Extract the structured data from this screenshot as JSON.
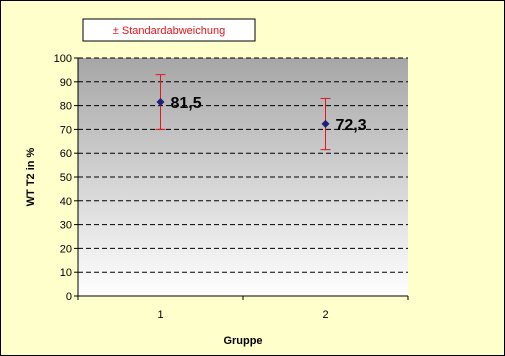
{
  "colors": {
    "background": "#ffffcc",
    "plot_gradient_top": "#a6a6a6",
    "plot_gradient_bottom": "#ffffff",
    "marker": "#1f1f7a",
    "error_bar": "#e8131b",
    "legend_text": "#e8131b"
  },
  "legend": {
    "text": "± Standardabweichung"
  },
  "chart_data": {
    "type": "scatter",
    "xlabel": "Gruppe",
    "ylabel": "WT T2  in %",
    "categories": [
      "1",
      "2"
    ],
    "values": [
      81.5,
      72.3
    ],
    "data_labels": [
      "81,5",
      "72,3"
    ],
    "error_upper": [
      93,
      83
    ],
    "error_lower": [
      70,
      61.5
    ],
    "ylim": [
      0,
      100
    ],
    "yticks": [
      "0",
      "10",
      "20",
      "30",
      "40",
      "50",
      "60",
      "70",
      "80",
      "90",
      "100"
    ],
    "grid": true,
    "gridline_style": "dashed",
    "legend_position": "top-left"
  }
}
